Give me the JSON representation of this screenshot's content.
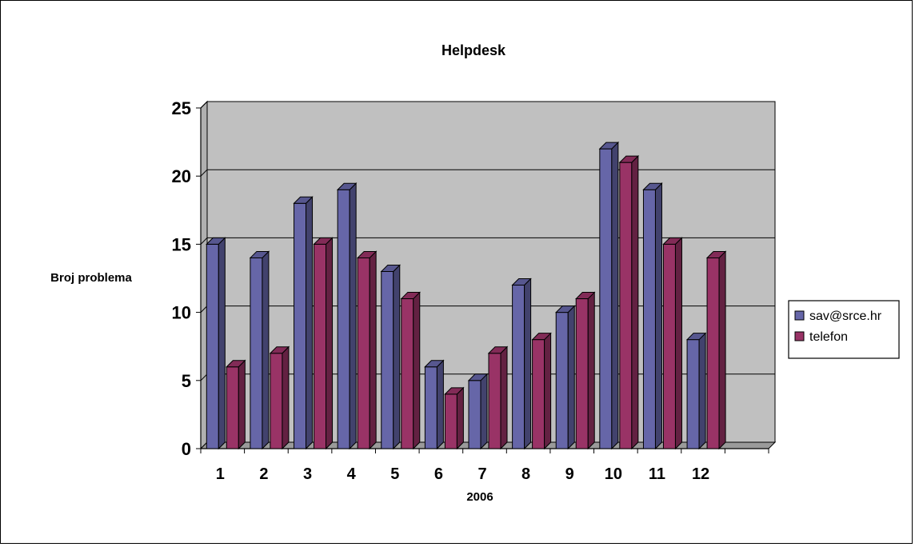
{
  "chart_data": {
    "type": "bar",
    "title": "Helpdesk",
    "xlabel": "2006",
    "ylabel": "Broj problema",
    "categories": [
      "1",
      "2",
      "3",
      "4",
      "5",
      "6",
      "7",
      "8",
      "9",
      "10",
      "11",
      "12"
    ],
    "series": [
      {
        "name": "sav@srce.hr",
        "color": "#6666a8",
        "values": [
          15,
          14,
          18,
          19,
          13,
          6,
          5,
          12,
          10,
          22,
          19,
          8
        ]
      },
      {
        "name": "telefon",
        "color": "#993366",
        "values": [
          6,
          7,
          15,
          14,
          11,
          4,
          7,
          8,
          11,
          21,
          15,
          14
        ]
      }
    ],
    "ylim": [
      0,
      25
    ],
    "yticks": [
      0,
      5,
      10,
      15,
      20,
      25
    ],
    "grid": true,
    "plot_background": "#c0c0c0",
    "style": "3d-clustered-column",
    "legend_position": "right"
  }
}
